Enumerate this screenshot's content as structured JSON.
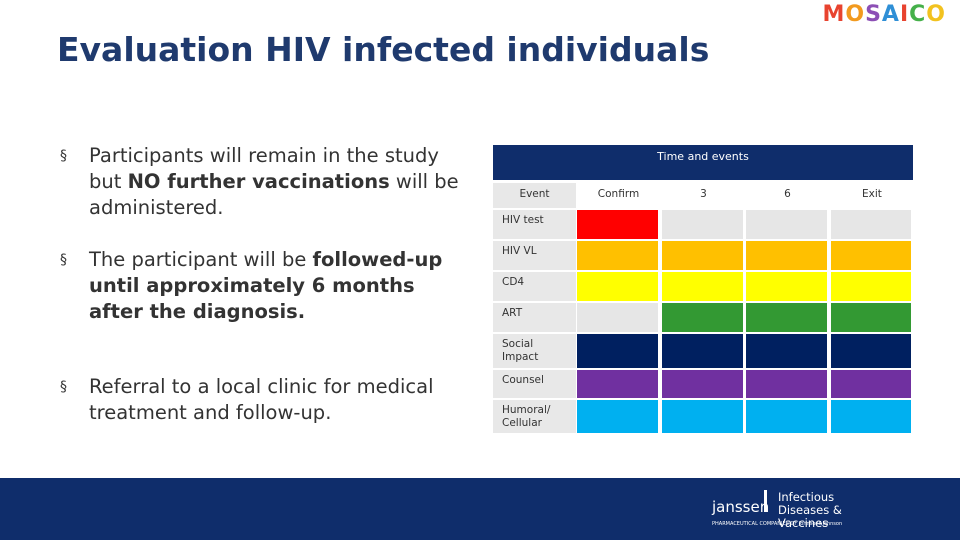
{
  "header": {
    "title": "Evaluation HIV infected individuals",
    "logo": [
      "M",
      "O",
      "S",
      "A",
      "I",
      "C",
      "O"
    ],
    "logo_colors": [
      "#e8432f",
      "#f29a1f",
      "#8c4fb5",
      "#2f8fd6",
      "#e8432f",
      "#45b04a",
      "#f2c21f"
    ]
  },
  "bullet_marker": "§",
  "bullets": [
    {
      "parts": [
        {
          "text": "Participants will remain in the study but ",
          "bold": false
        },
        {
          "text": "NO further vaccinations",
          "bold": true
        },
        {
          "text": " will be administered.",
          "bold": false
        }
      ]
    },
    {
      "parts": [
        {
          "text": "The participant will be ",
          "bold": false
        },
        {
          "text": "followed-up until approximately 6 months after the diagnosis.",
          "bold": true
        }
      ]
    },
    {
      "parts": [
        {
          "text": "Referral to a local clinic for medical treatment and follow-up.",
          "bold": false
        }
      ]
    }
  ],
  "table": {
    "title": "Time and events",
    "columns": [
      "Event",
      "Confirm",
      "3",
      "6",
      "Exit"
    ],
    "rows": [
      {
        "label": "HIV test",
        "colors": [
          "#ff0000",
          "#e6e6e6",
          "#e6e6e6",
          "#e6e6e6"
        ]
      },
      {
        "label": "HIV VL",
        "colors": [
          "#ffc000",
          "#ffc000",
          "#ffc000",
          "#ffc000"
        ]
      },
      {
        "label": "CD4",
        "colors": [
          "#ffff00",
          "#ffff00",
          "#ffff00",
          "#ffff00"
        ]
      },
      {
        "label": "ART",
        "colors": [
          "#e6e6e6",
          "#339933",
          "#339933",
          "#339933"
        ]
      },
      {
        "label": "Social Impact",
        "colors": [
          "#002060",
          "#002060",
          "#002060",
          "#002060"
        ]
      },
      {
        "label": "Counsel",
        "colors": [
          "#7030a0",
          "#7030a0",
          "#7030a0",
          "#7030a0"
        ]
      },
      {
        "label": "Humoral/ Cellular",
        "colors": [
          "#00b0f0",
          "#00b0f0",
          "#00b0f0",
          "#00b0f0"
        ]
      }
    ]
  },
  "footer": {
    "brand": "janssen",
    "division": "Infectious Diseases & Vaccines",
    "tagline": "PHARMACEUTICAL COMPANIES OF Johnson&Johnson"
  }
}
